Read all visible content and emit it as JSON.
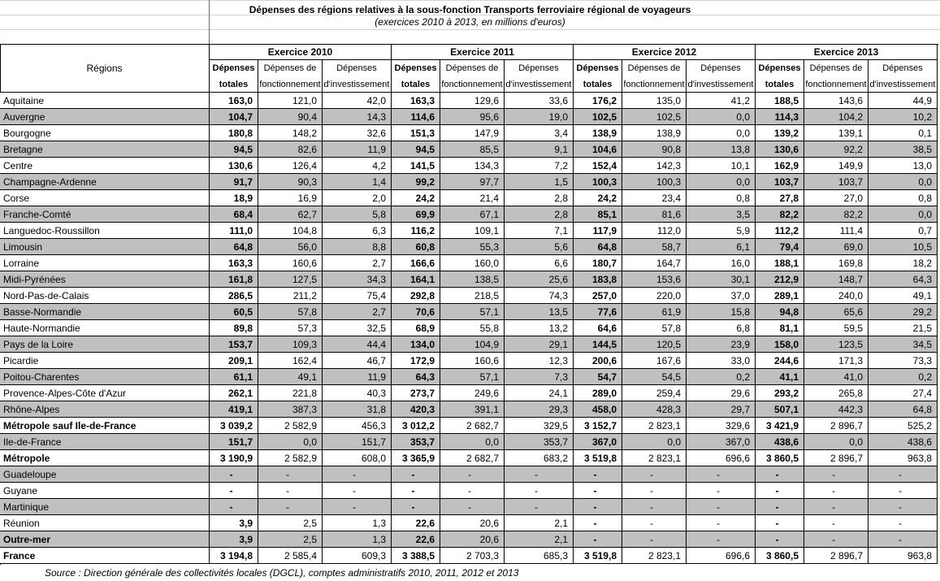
{
  "header": {
    "title": "Dépenses des régions relatives à la sous-fonction Transports ferroviaire régional de voyageurs",
    "subtitle": "(exercices 2010 à 2013, en millions d'euros)"
  },
  "table": {
    "region_header": "Régions",
    "years": [
      "Exercice 2010",
      "Exercice 2011",
      "Exercice 2012",
      "Exercice 2013"
    ],
    "columns": [
      {
        "line1": "Dépenses",
        "line2": "totales",
        "bold": true
      },
      {
        "line1": "Dépenses de",
        "line2": "fonctionnement",
        "bold": false
      },
      {
        "line1": "Dépenses",
        "line2": "d'investissement",
        "bold": false
      }
    ],
    "rows": [
      {
        "region": "Aquitaine",
        "bold": false,
        "cells": [
          "163,0",
          "121,0",
          "42,0",
          "163,3",
          "129,6",
          "33,6",
          "176,2",
          "135,0",
          "41,2",
          "188,5",
          "143,6",
          "44,9"
        ]
      },
      {
        "region": "Auvergne",
        "bold": false,
        "cells": [
          "104,7",
          "90,4",
          "14,3",
          "114,6",
          "95,6",
          "19,0",
          "102,5",
          "102,5",
          "0,0",
          "114,3",
          "104,2",
          "10,2"
        ]
      },
      {
        "region": "Bourgogne",
        "bold": false,
        "cells": [
          "180,8",
          "148,2",
          "32,6",
          "151,3",
          "147,9",
          "3,4",
          "138,9",
          "138,9",
          "0,0",
          "139,2",
          "139,1",
          "0,1"
        ]
      },
      {
        "region": "Bretagne",
        "bold": false,
        "cells": [
          "94,5",
          "82,6",
          "11,9",
          "94,5",
          "85,5",
          "9,1",
          "104,6",
          "90,8",
          "13,8",
          "130,6",
          "92,2",
          "38,5"
        ]
      },
      {
        "region": "Centre",
        "bold": false,
        "cells": [
          "130,6",
          "126,4",
          "4,2",
          "141,5",
          "134,3",
          "7,2",
          "152,4",
          "142,3",
          "10,1",
          "162,9",
          "149,9",
          "13,0"
        ]
      },
      {
        "region": "Champagne-Ardenne",
        "bold": false,
        "cells": [
          "91,7",
          "90,3",
          "1,4",
          "99,2",
          "97,7",
          "1,5",
          "100,3",
          "100,3",
          "0,0",
          "103,7",
          "103,7",
          "0,0"
        ]
      },
      {
        "region": "Corse",
        "bold": false,
        "cells": [
          "18,9",
          "16,9",
          "2,0",
          "24,2",
          "21,4",
          "2,8",
          "24,2",
          "23,4",
          "0,8",
          "27,8",
          "27,0",
          "0,8"
        ]
      },
      {
        "region": "Franche-Comté",
        "bold": false,
        "cells": [
          "68,4",
          "62,7",
          "5,8",
          "69,9",
          "67,1",
          "2,8",
          "85,1",
          "81,6",
          "3,5",
          "82,2",
          "82,2",
          "0,0"
        ]
      },
      {
        "region": "Languedoc-Roussillon",
        "bold": false,
        "cells": [
          "111,0",
          "104,8",
          "6,3",
          "116,2",
          "109,1",
          "7,1",
          "117,9",
          "112,0",
          "5,9",
          "112,2",
          "111,4",
          "0,7"
        ]
      },
      {
        "region": "Limousin",
        "bold": false,
        "cells": [
          "64,8",
          "56,0",
          "8,8",
          "60,8",
          "55,3",
          "5,6",
          "64,8",
          "58,7",
          "6,1",
          "79,4",
          "69,0",
          "10,5"
        ]
      },
      {
        "region": "Lorraine",
        "bold": false,
        "cells": [
          "163,3",
          "160,6",
          "2,7",
          "166,6",
          "160,0",
          "6,6",
          "180,7",
          "164,7",
          "16,0",
          "188,1",
          "169,8",
          "18,2"
        ]
      },
      {
        "region": "Midi-Pyrénées",
        "bold": false,
        "cells": [
          "161,8",
          "127,5",
          "34,3",
          "164,1",
          "138,5",
          "25,6",
          "183,8",
          "153,6",
          "30,1",
          "212,9",
          "148,7",
          "64,3"
        ]
      },
      {
        "region": "Nord-Pas-de-Calais",
        "bold": false,
        "cells": [
          "286,5",
          "211,2",
          "75,4",
          "292,8",
          "218,5",
          "74,3",
          "257,0",
          "220,0",
          "37,0",
          "289,1",
          "240,0",
          "49,1"
        ]
      },
      {
        "region": "Basse-Normandie",
        "bold": false,
        "cells": [
          "60,5",
          "57,8",
          "2,7",
          "70,6",
          "57,1",
          "13,5",
          "77,6",
          "61,9",
          "15,8",
          "94,8",
          "65,6",
          "29,2"
        ]
      },
      {
        "region": "Haute-Normandie",
        "bold": false,
        "cells": [
          "89,8",
          "57,3",
          "32,5",
          "68,9",
          "55,8",
          "13,2",
          "64,6",
          "57,8",
          "6,8",
          "81,1",
          "59,5",
          "21,5"
        ]
      },
      {
        "region": "Pays de la Loire",
        "bold": false,
        "cells": [
          "153,7",
          "109,3",
          "44,4",
          "134,0",
          "104,9",
          "29,1",
          "144,5",
          "120,5",
          "23,9",
          "158,0",
          "123,5",
          "34,5"
        ]
      },
      {
        "region": "Picardie",
        "bold": false,
        "cells": [
          "209,1",
          "162,4",
          "46,7",
          "172,9",
          "160,6",
          "12,3",
          "200,6",
          "167,6",
          "33,0",
          "244,6",
          "171,3",
          "73,3"
        ]
      },
      {
        "region": "Poitou-Charentes",
        "bold": false,
        "cells": [
          "61,1",
          "49,1",
          "11,9",
          "64,3",
          "57,1",
          "7,3",
          "54,7",
          "54,5",
          "0,2",
          "41,1",
          "41,0",
          "0,2"
        ]
      },
      {
        "region": "Provence-Alpes-Côte d'Azur",
        "bold": false,
        "cells": [
          "262,1",
          "221,8",
          "40,3",
          "273,7",
          "249,6",
          "24,1",
          "289,0",
          "259,4",
          "29,6",
          "293,2",
          "265,8",
          "27,4"
        ]
      },
      {
        "region": "Rhône-Alpes",
        "bold": false,
        "cells": [
          "419,1",
          "387,3",
          "31,8",
          "420,3",
          "391,1",
          "29,3",
          "458,0",
          "428,3",
          "29,7",
          "507,1",
          "442,3",
          "64,8"
        ]
      },
      {
        "region": "Métropole sauf Ile-de-France",
        "bold": true,
        "cells": [
          "3 039,2",
          "2 582,9",
          "456,3",
          "3 012,2",
          "2 682,7",
          "329,5",
          "3 152,7",
          "2 823,1",
          "329,6",
          "3 421,9",
          "2 896,7",
          "525,2"
        ]
      },
      {
        "region": "Ile-de-France",
        "bold": false,
        "cells": [
          "151,7",
          "0,0",
          "151,7",
          "353,7",
          "0,0",
          "353,7",
          "367,0",
          "0,0",
          "367,0",
          "438,6",
          "0,0",
          "438,6"
        ]
      },
      {
        "region": "Métropole",
        "bold": true,
        "cells": [
          "3 190,9",
          "2 582,9",
          "608,0",
          "3 365,9",
          "2 682,7",
          "683,2",
          "3 519,8",
          "2 823,1",
          "696,6",
          "3 860,5",
          "2 896,7",
          "963,8"
        ]
      },
      {
        "region": "Guadeloupe",
        "bold": false,
        "cells": [
          "-",
          "-",
          "-",
          "-",
          "-",
          "-",
          "-",
          "-",
          "-",
          "-",
          "-",
          "-"
        ]
      },
      {
        "region": "Guyane",
        "bold": false,
        "cells": [
          "-",
          "-",
          "-",
          "-",
          "-",
          "-",
          "-",
          "-",
          "-",
          "-",
          "-",
          "-"
        ]
      },
      {
        "region": "Martinique",
        "bold": false,
        "cells": [
          "-",
          "-",
          "-",
          "-",
          "-",
          "-",
          "-",
          "-",
          "-",
          "-",
          "-",
          "-"
        ]
      },
      {
        "region": "Réunion",
        "bold": false,
        "cells": [
          "3,9",
          "2,5",
          "1,3",
          "22,6",
          "20,6",
          "2,1",
          "-",
          "-",
          "-",
          "-",
          "-",
          "-"
        ]
      },
      {
        "region": "Outre-mer",
        "bold": true,
        "cells": [
          "3,9",
          "2,5",
          "1,3",
          "22,6",
          "20,6",
          "2,1",
          "-",
          "-",
          "-",
          "-",
          "-",
          "-"
        ]
      },
      {
        "region": "France",
        "bold": true,
        "cells": [
          "3 194,8",
          "2 585,4",
          "609,3",
          "3 388,5",
          "2 703,3",
          "685,3",
          "3 519,8",
          "2 823,1",
          "696,6",
          "3 860,5",
          "2 896,7",
          "963,8"
        ]
      }
    ]
  },
  "footer": {
    "source": "Source : Direction générale des collectivités locales (DGCL), comptes administratifs 2010, 2011, 2012 et 2013"
  }
}
